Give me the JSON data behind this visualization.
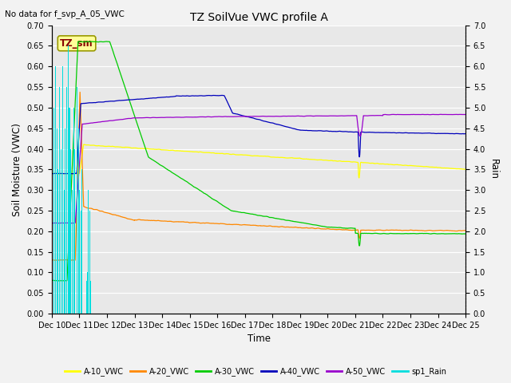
{
  "title": "TZ SoilVue VWC profile A",
  "subtitle": "No data for f_svp_A_05_VWC",
  "xlabel": "Time",
  "ylabel_left": "Soil Moisture (VWC)",
  "ylabel_right": "Rain",
  "annotation": "TZ_sm",
  "ylim_left": [
    0.0,
    0.7
  ],
  "ylim_right": [
    0.0,
    7.0
  ],
  "xtick_labels": [
    "Dec 10",
    "Dec 11",
    "Dec 12",
    "Dec 13",
    "Dec 14",
    "Dec 15",
    "Dec 16",
    "Dec 17",
    "Dec 18",
    "Dec 19",
    "Dec 20",
    "Dec 21",
    "Dec 22",
    "Dec 23",
    "Dec 24",
    "Dec 25"
  ],
  "colors": {
    "A10": "#ffff00",
    "A20": "#ff8800",
    "A30": "#00cc00",
    "A40": "#0000bb",
    "A50": "#9900cc",
    "rain": "#00dddd",
    "annotation_bg": "#ffff99",
    "annotation_border": "#999900",
    "bg": "#e8e8e8",
    "fig_bg": "#f2f2f2"
  },
  "legend_labels": [
    "A-10_VWC",
    "A-20_VWC",
    "A-30_VWC",
    "A-40_VWC",
    "A-50_VWC",
    "sp1_Rain"
  ]
}
